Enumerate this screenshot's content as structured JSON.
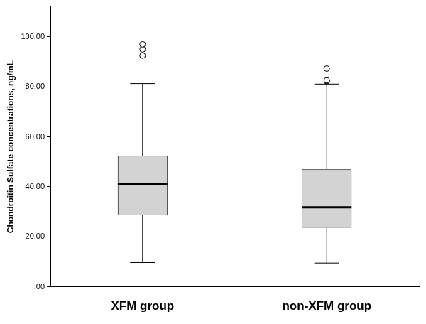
{
  "chart_data": {
    "type": "box",
    "y_label": "Chondroitin Sulfate concentrations, ng/mL",
    "categories": [
      "XFM group",
      "non-XFM group"
    ],
    "boxes": [
      {
        "min": 9.7,
        "q1": 28.6,
        "median": 41.2,
        "q3": 52.4,
        "max": 81.3,
        "outliers": [
          92.5,
          95.0,
          97.0
        ]
      },
      {
        "min": 9.5,
        "q1": 23.6,
        "median": 31.8,
        "q3": 47.0,
        "max": 81.1,
        "outliers": [
          82.3,
          82.6,
          87.3
        ]
      }
    ],
    "color": "#d3d3d3",
    "ylim": [
      0,
      112
    ],
    "yticks": [
      {
        "value": 0,
        "label": ".00"
      },
      {
        "value": 20,
        "label": "20.00"
      },
      {
        "value": 40,
        "label": "40.00"
      },
      {
        "value": 60,
        "label": "60.00"
      },
      {
        "value": 80,
        "label": "80.00"
      },
      {
        "value": 100,
        "label": "100.00"
      }
    ],
    "grid": false
  }
}
